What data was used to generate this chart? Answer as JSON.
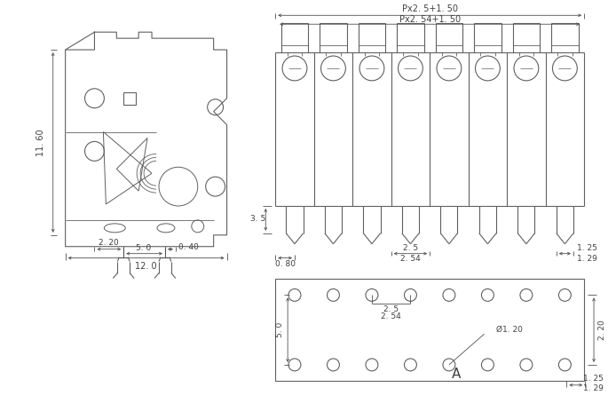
{
  "bg_color": "#ffffff",
  "line_color": "#606060",
  "dim_color": "#505050",
  "text_color": "#404040",
  "fig_width": 6.94,
  "fig_height": 4.63,
  "n_pins": 8,
  "annotations": {
    "dim_11_60": "11. 60",
    "dim_2_20": "2. 20",
    "dim_5_0": "5. 0",
    "dim_0_40": "0. 40",
    "dim_12_0": "12. 0",
    "dim_Px25": "Px2. 5+1. 50",
    "dim_Px254": "Px2. 54+1. 50",
    "dim_3_5": "3. 5",
    "dim_0_80": "0. 80",
    "dim_2_5": "2. 5",
    "dim_2_54": "2. 54",
    "dim_1_25": "1. 25",
    "dim_1_29": "1. 29",
    "dim_5_0b": "5. 0",
    "dim_2_5b": "2. 5",
    "dim_2_54b": "2. 54",
    "dim_dia1_20": "Ø1. 20",
    "dim_2_20b": "2. 20",
    "dim_1_25b": "1. 25",
    "dim_1_29b": "1. 29",
    "label_A": "A"
  }
}
